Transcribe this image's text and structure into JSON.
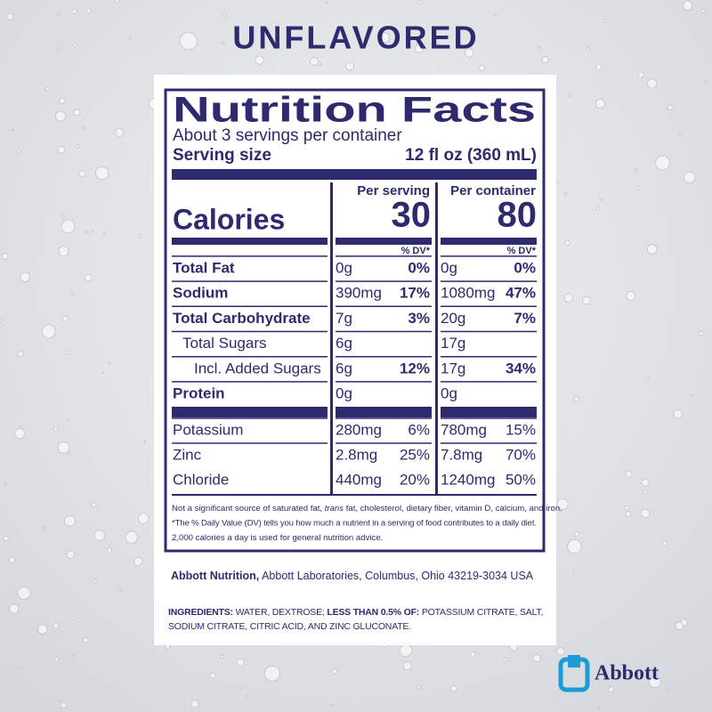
{
  "title": "UNFLAVORED",
  "label": {
    "heading": "Nutrition Facts",
    "servings": "About 3 servings per container",
    "serving_size_label": "Serving size",
    "serving_size": "12 fl oz (360 mL)",
    "column_headers": [
      "Per serving",
      "Per container"
    ],
    "calories_label": "Calories",
    "calories": [
      30,
      80
    ],
    "dv_headers": [
      "% DV*",
      "% DV*"
    ],
    "nutrients": [
      [
        "Total Fat",
        "0g",
        "0%",
        "0g",
        "0%"
      ],
      [
        "Sodium",
        "390mg",
        "17%",
        "1080mg",
        "47%"
      ],
      [
        "Total Carbohydrate",
        "7g",
        "3%",
        "20g",
        "7%"
      ],
      [
        "Total Sugars",
        "6g",
        null,
        "17g",
        null
      ],
      [
        "Incl. Added Sugars",
        "6g",
        "12%",
        "17g",
        "34%"
      ],
      [
        "Protein",
        "0g",
        null,
        "0g",
        null
      ]
    ],
    "minerals": [
      [
        "Potassium",
        "280mg",
        "6%",
        "780mg",
        "15%"
      ],
      [
        "Zinc",
        "2.8mg",
        "25%",
        "7.8mg",
        "70%"
      ],
      [
        "Chloride",
        "440mg",
        "20%",
        "1240mg",
        "50%"
      ]
    ],
    "footnotes": [
      [
        "Not a significant source of saturated fat, ",
        "trans",
        " fat, cholesterol, dietary fiber, vitamin D, calcium, and iron."
      ],
      [
        "*The % Daily Value (DV) tells you how much a nutrient in a serving of food contributes to a daily diet."
      ],
      [
        "2,000 calories a day is used for general nutrition advice."
      ]
    ]
  },
  "manufacturer": [
    "Abbott Nutrition,",
    "Abbott Laboratories, Columbus, Ohio 43219-3034 USA"
  ],
  "ingredients": [
    "INGREDIENTS:",
    " WATER, DEXTROSE; ",
    "LESS THAN 0.5% OF:",
    " POTASSIUM CITRATE, SALT, SODIUM CITRATE, CITRIC ACID, AND ZINC GLUCONATE."
  ],
  "brand": "Abbott"
}
